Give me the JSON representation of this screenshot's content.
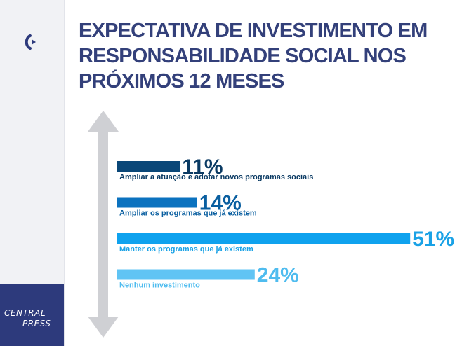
{
  "title": "EXPECTATIVA DE INVESTIMENTO EM RESPONSABILIDADE SOCIAL NOS PRÓXIMOS 12 MESES",
  "brand": {
    "line1": "CENTRAL",
    "line2": "PRESS"
  },
  "colors": {
    "title": "#33407a",
    "sidebar": "#f1f2f5",
    "brand_box": "#2d3a7c",
    "arrow": "#cfd0d4"
  },
  "chart_data": {
    "type": "bar",
    "orientation": "horizontal",
    "categories": [
      "Ampliar a atuação e adotar novos programas sociais",
      "Ampliar os programas que já existem",
      "Manter os programas que já existem",
      "Nenhum investimento"
    ],
    "values": [
      11,
      14,
      51,
      24
    ],
    "value_labels": [
      "11%",
      "14%",
      "51%",
      "24%"
    ],
    "bar_colors": [
      "#0a4778",
      "#0b72bf",
      "#0fa2ee",
      "#60c4f4"
    ],
    "label_colors": [
      "#0a3a63",
      "#0a5fa0",
      "#1aa2e6",
      "#4fbcef"
    ],
    "grid": false,
    "legend": "none"
  }
}
